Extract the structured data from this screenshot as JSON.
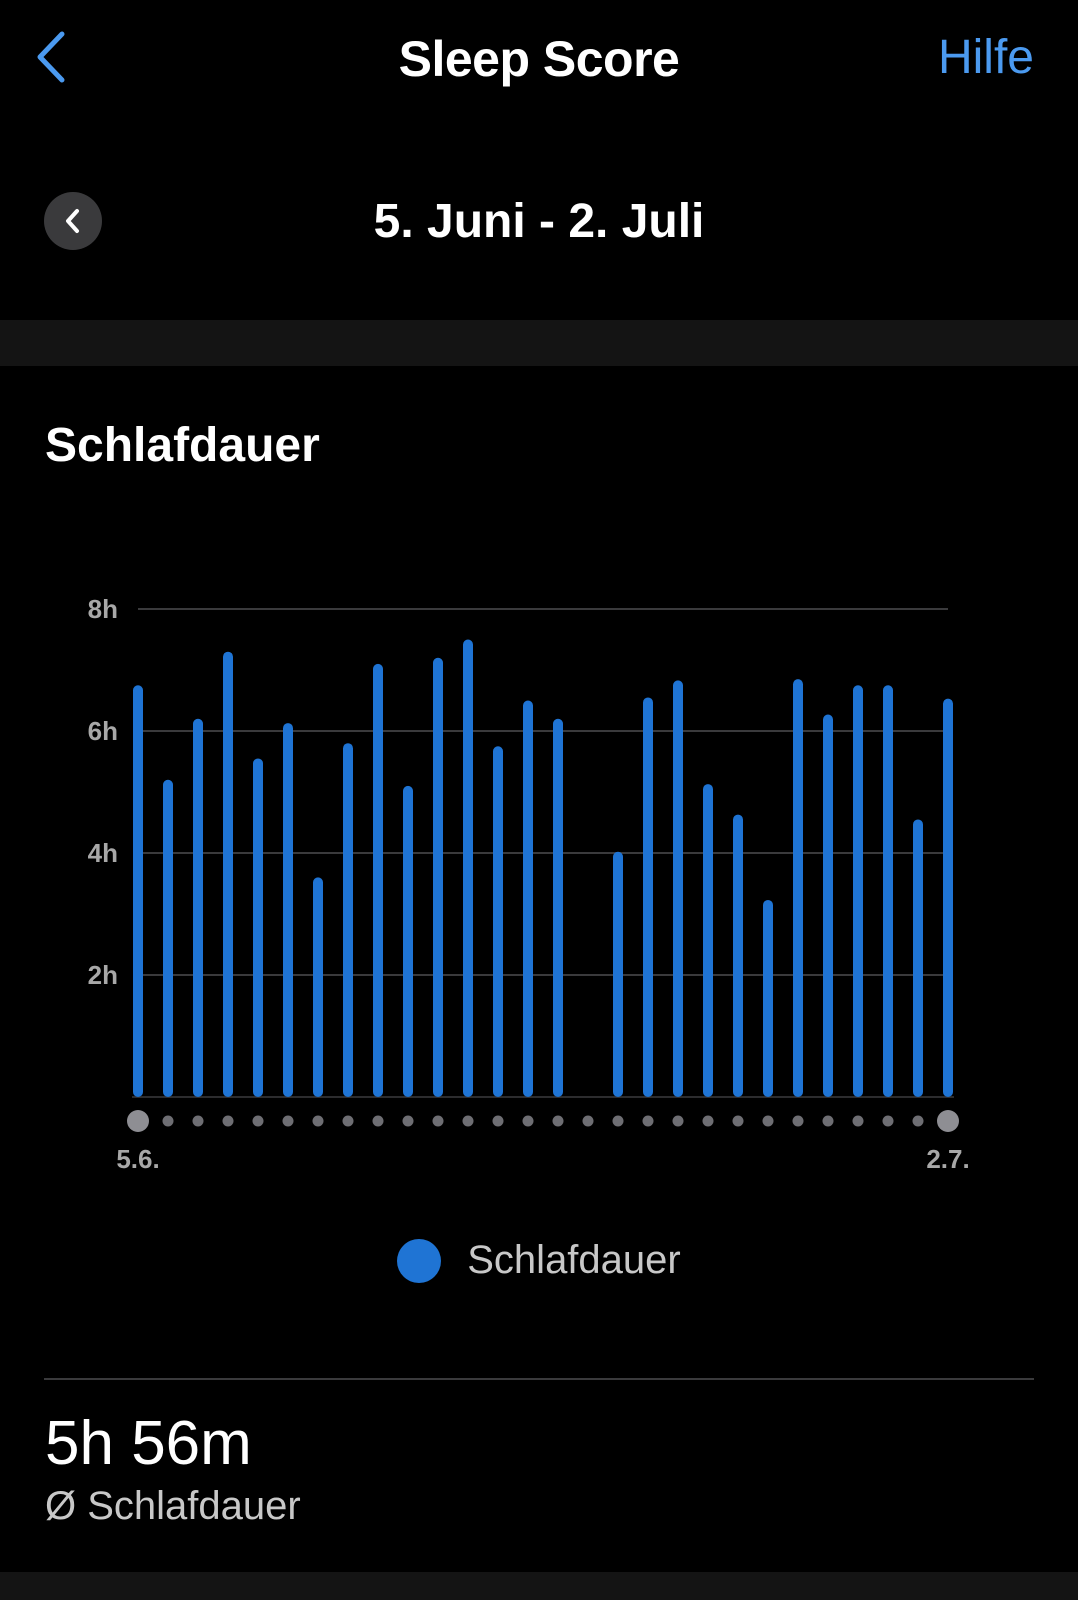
{
  "nav": {
    "title": "Sleep Score",
    "help_label": "Hilfe"
  },
  "range": {
    "label": "5. Juni - 2. Juli"
  },
  "section": {
    "title": "Schlafdauer"
  },
  "chart_data": {
    "type": "bar",
    "y_ticks": [
      "2h",
      "4h",
      "6h",
      "8h"
    ],
    "ylim": [
      0,
      8
    ],
    "x_start_label": "5.6.",
    "x_end_label": "2.7.",
    "grid": true,
    "legend": "bottom-center",
    "bar_color": "#1f74d4",
    "series": [
      {
        "name": "Schlafdauer",
        "values": [
          6.75,
          5.2,
          6.2,
          7.3,
          5.55,
          6.13,
          3.6,
          5.8,
          7.1,
          5.1,
          7.2,
          7.5,
          5.75,
          6.5,
          6.2,
          null,
          4.02,
          6.55,
          6.83,
          5.13,
          4.63,
          3.23,
          6.85,
          6.27,
          6.75,
          6.75,
          4.55,
          6.53
        ]
      }
    ]
  },
  "legend": {
    "label": "Schlafdauer"
  },
  "summary": {
    "value": "5h 56m",
    "label": "Ø Schlafdauer"
  }
}
